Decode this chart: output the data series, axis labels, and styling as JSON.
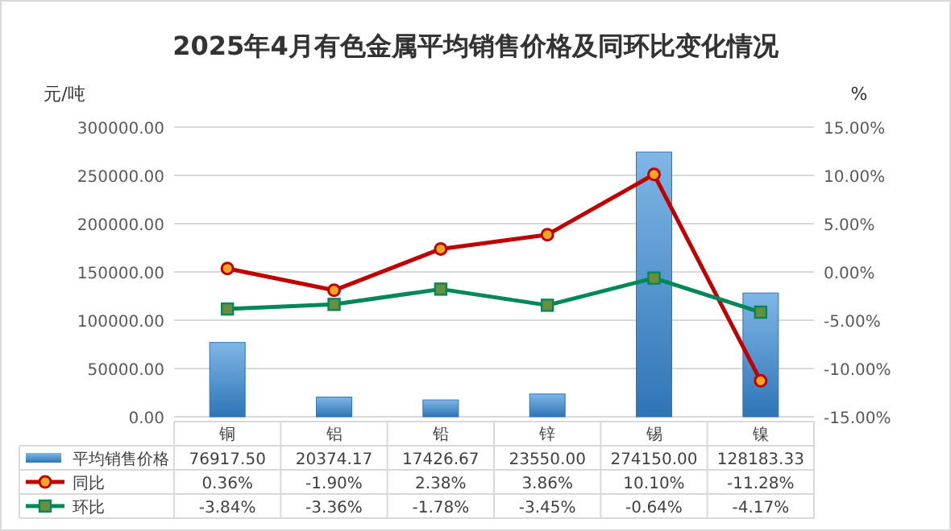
{
  "chart_data": {
    "type": "bar",
    "title": "2025年4月有色金属平均销售价格及同环比变化情况",
    "ylabel": "元/吨",
    "y2label": "%",
    "categories": [
      "铜",
      "铝",
      "铅",
      "锌",
      "锡",
      "镍"
    ],
    "series": [
      {
        "name": "平均销售价格",
        "color": "#2e75b6",
        "values": [
          76917.5,
          20374.17,
          17426.67,
          23550,
          274150,
          128183.33
        ],
        "value_labels": [
          "76917.50",
          "20374.17",
          "17426.67",
          "23550.00",
          "274150.00",
          "128183.33"
        ]
      },
      {
        "name": "同比",
        "type": "line",
        "axis": "y2",
        "color": "#c00000",
        "marker": "circle",
        "values": [
          0.36,
          -1.9,
          2.38,
          3.86,
          10.1,
          -11.28
        ],
        "value_labels": [
          "0.36%",
          "-1.90%",
          "2.38%",
          "3.86%",
          "10.10%",
          "-11.28%"
        ]
      },
      {
        "name": "环比",
        "type": "line",
        "axis": "y2",
        "color": "#00875a",
        "marker": "square",
        "values": [
          -3.84,
          -3.36,
          -1.78,
          -3.45,
          -0.64,
          -4.17
        ],
        "value_labels": [
          "-3.84%",
          "-3.36%",
          "-1.78%",
          "-3.45%",
          "-0.64%",
          "-4.17%"
        ]
      }
    ],
    "ylim": [
      0,
      300000
    ],
    "yticks": [
      {
        "value": 0,
        "label": "0.00"
      },
      {
        "value": 50000,
        "label": "50000.00"
      },
      {
        "value": 100000,
        "label": "100000.00"
      },
      {
        "value": 150000,
        "label": "150000.00"
      },
      {
        "value": 200000,
        "label": "200000.00"
      },
      {
        "value": 250000,
        "label": "250000.00"
      },
      {
        "value": 300000,
        "label": "300000.00"
      }
    ],
    "y2lim": [
      -15,
      15
    ],
    "y2ticks": [
      {
        "value": -15,
        "label": "-15.00%"
      },
      {
        "value": -10,
        "label": "-10.00%"
      },
      {
        "value": -5,
        "label": "-5.00%"
      },
      {
        "value": 0,
        "label": "0.00%"
      },
      {
        "value": 5,
        "label": "5.00%"
      },
      {
        "value": 10,
        "label": "10.00%"
      },
      {
        "value": 15,
        "label": "15.00%"
      }
    ],
    "grid": "y",
    "legend": "bottom"
  }
}
